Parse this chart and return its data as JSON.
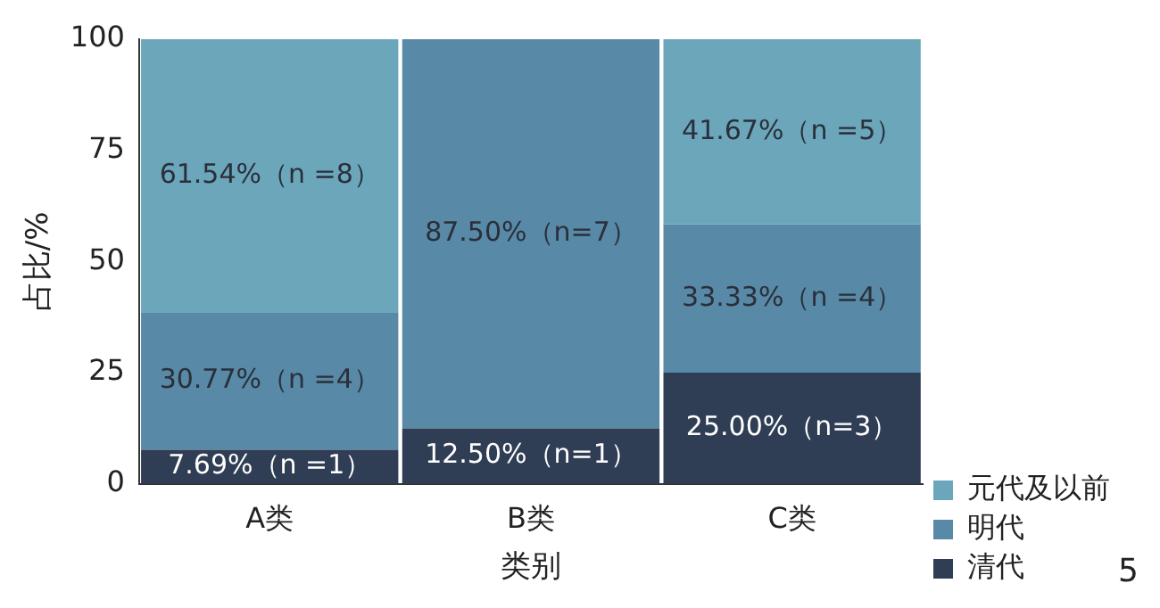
{
  "chart_data": {
    "type": "bar",
    "stacked": true,
    "xlabel": "类别",
    "ylabel": "占比/%",
    "categories": [
      "A类",
      "B类",
      "C类"
    ],
    "series": [
      {
        "name": "清代",
        "color": "#2f3d55",
        "values": [
          7.69,
          12.5,
          25.0
        ],
        "value_labels": [
          "7.69%（n =1）",
          "12.50%（n=1）",
          "25.00%（n=3）"
        ]
      },
      {
        "name": "明代",
        "color": "#5889a6",
        "values": [
          30.77,
          87.5,
          33.33
        ],
        "value_labels": [
          "30.77%（n =4）",
          "87.50%（n=7）",
          "33.33%（n =4）"
        ]
      },
      {
        "name": "元代及以前",
        "color": "#6ca6bb",
        "values": [
          61.54,
          0,
          41.67
        ],
        "value_labels": [
          "61.54%（n =8）",
          null,
          "41.67%（n =5）"
        ]
      }
    ],
    "ylim": [
      0,
      100
    ],
    "yticks": [
      0,
      25,
      50,
      75,
      100
    ],
    "grid": false,
    "legend": "bottom right",
    "annotations": [
      "5"
    ]
  }
}
